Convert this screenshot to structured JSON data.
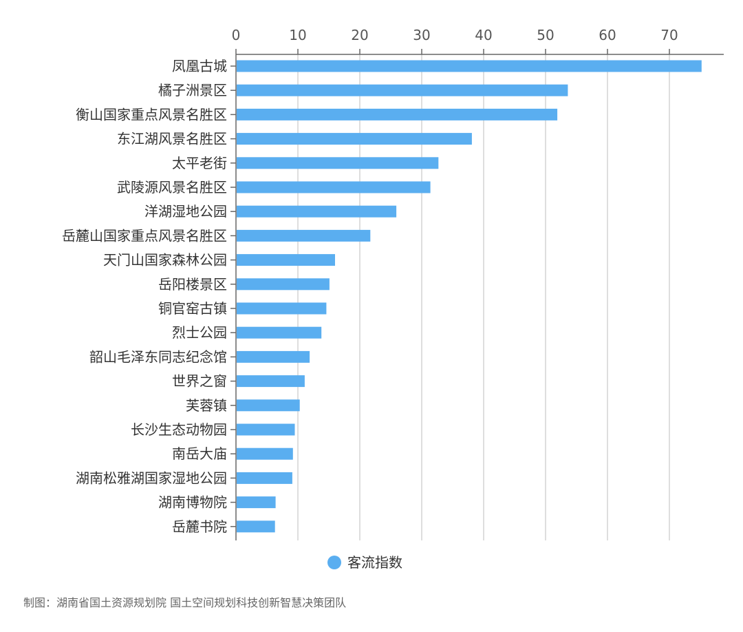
{
  "chart_data": {
    "type": "bar",
    "orientation": "horizontal",
    "categories": [
      "凤凰古城",
      "橘子洲景区",
      "衡山国家重点风景名胜区",
      "东江湖风景名胜区",
      "太平老街",
      "武陵源风景名胜区",
      "洋湖湿地公园",
      "岳麓山国家重点风景名胜区",
      "天门山国家森林公园",
      "岳阳楼景区",
      "铜官窑古镇",
      "烈士公园",
      "韶山毛泽东同志纪念馆",
      "世界之窗",
      "芙蓉镇",
      "长沙生态动物园",
      "南岳大庙",
      "湖南松雅湖国家湿地公园",
      "湖南博物院",
      "岳麓书院"
    ],
    "series": [
      {
        "name": "客流指数",
        "color": "#5aaef0",
        "values": [
          75.2,
          53.6,
          51.9,
          38.1,
          32.7,
          31.4,
          25.9,
          21.7,
          16.0,
          15.1,
          14.6,
          13.8,
          11.9,
          11.1,
          10.3,
          9.5,
          9.2,
          9.1,
          6.4,
          6.3
        ]
      }
    ],
    "xlim": [
      0,
      78
    ],
    "xticks": [
      0,
      10,
      20,
      30,
      40,
      50,
      60,
      70
    ],
    "axis_position": "top",
    "grid": true,
    "legend_position": "bottom-center"
  },
  "source_text": "制图：湖南省国土资源规划院 国土空间规划科技创新智慧决策团队",
  "colors": {
    "bar": "#5aaef0",
    "grid": "#d4d4d4",
    "axis": "#666666"
  }
}
